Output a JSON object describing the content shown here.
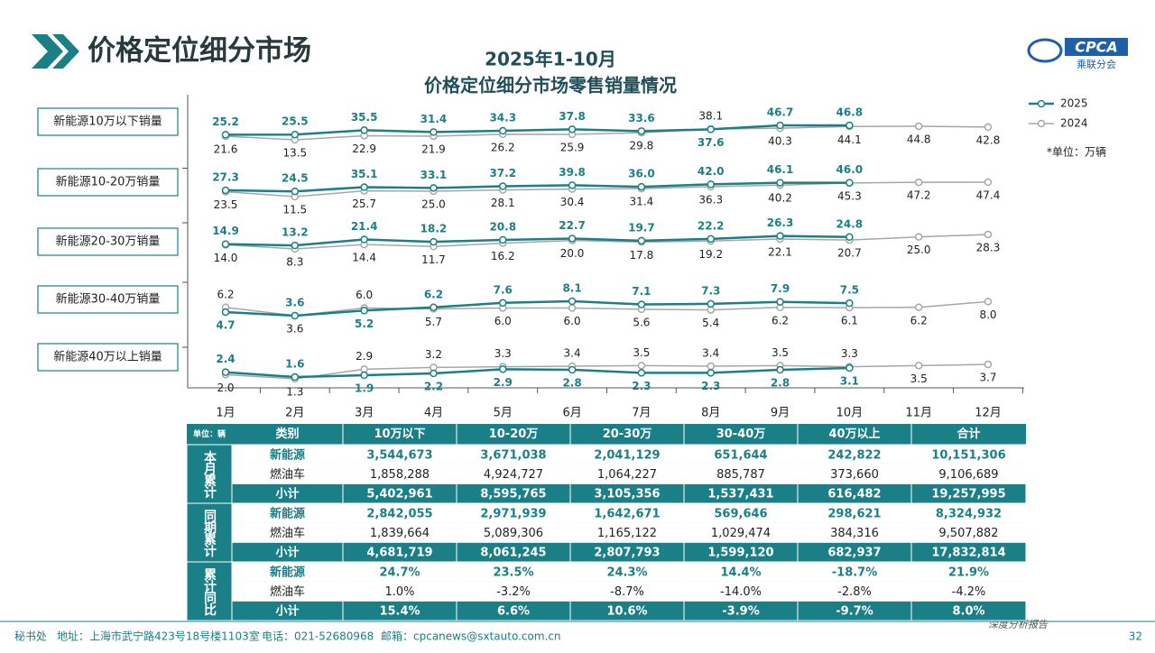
{
  "header": {
    "title": "价格定位细分市场",
    "logo": "CPCA",
    "logo_sub": "乘联分会"
  },
  "chart_data": {
    "type": "line",
    "title": "2025年1-10月",
    "subtitle": "价格定位细分市场零售销量情况",
    "unit_note": "*单位：万辆",
    "categories": [
      "1月",
      "2月",
      "3月",
      "4月",
      "5月",
      "6月",
      "7月",
      "8月",
      "9月",
      "10月",
      "11月",
      "12月"
    ],
    "legend": [
      {
        "name": "2025",
        "color": "#1a7f86"
      },
      {
        "name": "2024",
        "color": "#a6a6a6"
      }
    ],
    "panels": [
      {
        "label": "新能源10万以下销量",
        "series": [
          {
            "values": [
              25.2,
              25.5,
              35.5,
              31.4,
              34.3,
              37.8,
              33.6,
              37.6,
              46.7,
              46.8,
              null,
              null
            ],
            "value_labels": [
              "25.2",
              "25.5",
              "35.5",
              "31.4",
              "34.3",
              "37.8",
              "33.6",
              "37.6",
              "46.7",
              "46.8",
              null,
              null
            ]
          },
          {
            "values": [
              21.6,
              13.5,
              22.9,
              21.9,
              26.2,
              25.9,
              29.8,
              38.1,
              40.3,
              44.1,
              44.8,
              42.8
            ],
            "value_labels": [
              "21.6",
              "13.5",
              "22.9",
              "21.9",
              "26.2",
              "25.9",
              "29.8",
              "38.1",
              "40.3",
              "44.1",
              "44.8",
              "42.8"
            ]
          }
        ]
      },
      {
        "label": "新能源10-20万销量",
        "series": [
          {
            "values": [
              27.3,
              24.5,
              35.1,
              33.1,
              37.2,
              39.8,
              36.0,
              42.0,
              46.1,
              46.0,
              null,
              null
            ],
            "value_labels": [
              "27.3",
              "24.5",
              "35.1",
              "33.1",
              "37.2",
              "39.8",
              "36.0",
              "42.0",
              "46.1",
              "46.0",
              null,
              null
            ]
          },
          {
            "values": [
              23.5,
              11.5,
              25.7,
              25.0,
              28.1,
              30.4,
              31.4,
              36.3,
              40.2,
              45.3,
              47.2,
              47.4
            ],
            "value_labels": [
              "23.5",
              "11.5",
              "25.7",
              "25.0",
              "28.1",
              "30.4",
              "31.4",
              "36.3",
              "40.2",
              "45.3",
              "47.2",
              "47.4"
            ]
          }
        ]
      },
      {
        "label": "新能源20-30万销量",
        "series": [
          {
            "values": [
              14.9,
              13.2,
              21.4,
              18.2,
              20.8,
              22.7,
              19.7,
              22.2,
              26.3,
              24.8,
              null,
              null
            ],
            "value_labels": [
              "14.9",
              "13.2",
              "21.4",
              "18.2",
              "20.8",
              "22.7",
              "19.7",
              "22.2",
              "26.3",
              "24.8",
              null,
              null
            ]
          },
          {
            "values": [
              14.0,
              8.3,
              14.4,
              11.7,
              16.2,
              20.0,
              17.8,
              19.2,
              22.1,
              20.7,
              25.0,
              28.3
            ],
            "value_labels": [
              "14.0",
              "8.3",
              "14.4",
              "11.7",
              "16.2",
              "20.0",
              "17.8",
              "19.2",
              "22.1",
              "20.7",
              "25.0",
              "28.3"
            ]
          }
        ]
      },
      {
        "label": "新能源30-40万销量",
        "series": [
          {
            "values": [
              4.7,
              3.6,
              5.2,
              6.2,
              7.6,
              8.1,
              7.1,
              7.3,
              7.9,
              7.5,
              null,
              null
            ],
            "value_labels": [
              "4.7",
              "3.6",
              "5.2",
              "6.2",
              "7.6",
              "8.1",
              "7.1",
              "7.3",
              "7.9",
              "7.5",
              null,
              null
            ]
          },
          {
            "values": [
              6.2,
              3.6,
              6.0,
              5.7,
              6.0,
              6.0,
              5.6,
              5.4,
              6.2,
              6.1,
              6.2,
              8.0
            ],
            "value_labels": [
              "6.2",
              "3.6",
              "6.0",
              "5.7",
              "6.0",
              "6.0",
              "5.6",
              "5.4",
              "6.2",
              "6.1",
              "6.2",
              "8.0"
            ]
          }
        ]
      },
      {
        "label": "新能源40万以上销量",
        "series": [
          {
            "values": [
              2.4,
              1.6,
              1.9,
              2.2,
              2.9,
              2.8,
              2.3,
              2.3,
              2.8,
              3.1,
              null,
              null
            ],
            "value_labels": [
              "2.4",
              "1.6",
              "1.9",
              "2.2",
              "2.9",
              "2.8",
              "2.3",
              "2.3",
              "2.8",
              "3.1",
              null,
              null
            ]
          },
          {
            "values": [
              2.0,
              1.3,
              2.9,
              3.2,
              3.3,
              3.4,
              3.5,
              3.4,
              3.5,
              3.3,
              3.5,
              3.7
            ],
            "value_labels": [
              "2.0",
              "1.3",
              "2.9",
              "3.2",
              "3.3",
              "3.4",
              "3.5",
              "3.4",
              "3.5",
              "3.3",
              "3.5",
              "3.7"
            ]
          }
        ]
      }
    ]
  },
  "table": {
    "unit": "单位：辆",
    "columns": [
      "类别",
      "10万以下",
      "10-20万",
      "20-30万",
      "30-40万",
      "40万以上",
      "合计"
    ],
    "groups": [
      {
        "label": "本月累计",
        "rows": [
          [
            "新能源",
            "3,544,673",
            "3,671,038",
            "2,041,129",
            "651,644",
            "242,822",
            "10,151,306"
          ],
          [
            "燃油车",
            "1,858,288",
            "4,924,727",
            "1,064,227",
            "885,787",
            "373,660",
            "9,106,689"
          ],
          [
            "小计",
            "5,402,961",
            "8,595,765",
            "3,105,356",
            "1,537,431",
            "616,482",
            "19,257,995"
          ]
        ]
      },
      {
        "label": "同期累计",
        "rows": [
          [
            "新能源",
            "2,842,055",
            "2,971,939",
            "1,642,671",
            "569,646",
            "298,621",
            "8,324,932"
          ],
          [
            "燃油车",
            "1,839,664",
            "5,089,306",
            "1,165,122",
            "1,029,474",
            "384,316",
            "9,507,882"
          ],
          [
            "小计",
            "4,681,719",
            "8,061,245",
            "2,807,793",
            "1,599,120",
            "682,937",
            "17,832,814"
          ]
        ]
      },
      {
        "label": "累计同比",
        "rows": [
          [
            "新能源",
            "24.7%",
            "23.5%",
            "24.3%",
            "14.4%",
            "-18.7%",
            "21.9%"
          ],
          [
            "燃油车",
            "1.0%",
            "-3.2%",
            "-8.7%",
            "-14.0%",
            "-2.8%",
            "-4.2%"
          ],
          [
            "小计",
            "15.4%",
            "6.6%",
            "10.6%",
            "-3.9%",
            "-9.7%",
            "8.0%"
          ]
        ]
      }
    ]
  },
  "footer": {
    "org": "秘书处",
    "address": "地址：上海市武宁路423号18号楼1103室",
    "phone": "电话：021-52680968",
    "email": "邮箱：cpcanews@sxtauto.com.cn",
    "tag": "深度分析报告",
    "page": "32"
  }
}
